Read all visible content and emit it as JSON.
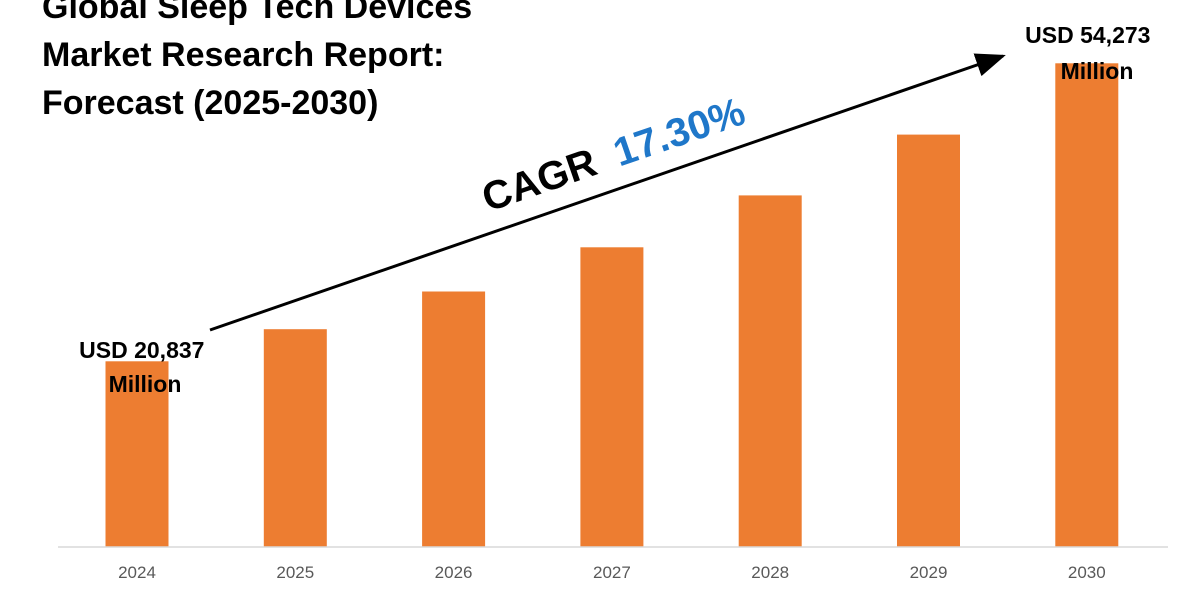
{
  "chart_data": {
    "type": "bar",
    "title_lines": [
      "Global Sleep Tech Devices",
      "Market Research Report:",
      "Forecast (2025-2030)"
    ],
    "categories": [
      "2024",
      "2025",
      "2026",
      "2027",
      "2028",
      "2029",
      "2030"
    ],
    "values": [
      20837,
      24442,
      28671,
      33632,
      39450,
      46275,
      54273
    ],
    "unit": "USD Million",
    "ylim": [
      0,
      57000
    ],
    "grid": false,
    "legend": "none",
    "bar_color": "#ED7D31",
    "first_label": [
      "USD 20,837",
      "Million"
    ],
    "last_label": [
      "USD 54,273",
      "Million"
    ],
    "cagr": {
      "prefix": "CAGR",
      "value": "17.30%",
      "prefix_color": "#000000",
      "value_color": "#1F77C9"
    },
    "axis_color": "#D9D9D9"
  }
}
